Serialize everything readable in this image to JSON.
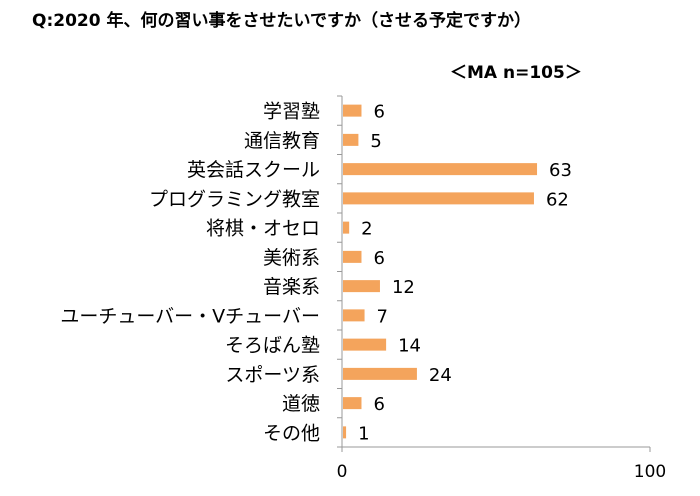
{
  "header": {
    "title": "Q:2020 年、何の習い事をさせたいですか（させる予定ですか）",
    "sample": "＜MA n=105＞"
  },
  "chart_data": {
    "type": "bar",
    "orientation": "horizontal",
    "categories": [
      "学習塾",
      "通信教育",
      "英会話スクール",
      "プログラミング教室",
      "将棋・オセロ",
      "美術系",
      "音楽系",
      "ユーチューバー・Vチューバー",
      "そろばん塾",
      "スポーツ系",
      "道徳",
      "その他"
    ],
    "values": [
      6,
      5,
      63,
      62,
      2,
      6,
      12,
      7,
      14,
      24,
      6,
      1
    ],
    "xlim": [
      0,
      100
    ],
    "x_ticks": [
      "0",
      "100"
    ],
    "xlabel": "",
    "ylabel": "",
    "bar_color": "#f4a45c",
    "grid": false,
    "legend": "none"
  }
}
